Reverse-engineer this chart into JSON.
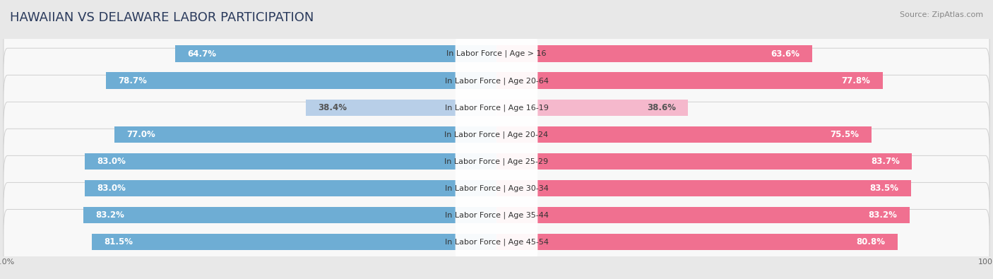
{
  "title": "HAWAIIAN VS DELAWARE LABOR PARTICIPATION",
  "source": "Source: ZipAtlas.com",
  "categories": [
    "In Labor Force | Age > 16",
    "In Labor Force | Age 20-64",
    "In Labor Force | Age 16-19",
    "In Labor Force | Age 20-24",
    "In Labor Force | Age 25-29",
    "In Labor Force | Age 30-34",
    "In Labor Force | Age 35-44",
    "In Labor Force | Age 45-54"
  ],
  "hawaiian": [
    64.7,
    78.7,
    38.4,
    77.0,
    83.0,
    83.0,
    83.2,
    81.5
  ],
  "delaware": [
    63.6,
    77.8,
    38.6,
    75.5,
    83.7,
    83.5,
    83.2,
    80.8
  ],
  "hawaiian_color": "#6eadd4",
  "hawaiian_color_light": "#b8cfe8",
  "delaware_color": "#f07090",
  "delaware_color_light": "#f5b8cc",
  "bg_color": "#e8e8e8",
  "row_bg": "#f8f8f8",
  "max_val": 100.0,
  "title_fontsize": 13,
  "bar_label_fontsize": 8.5,
  "cat_label_fontsize": 8,
  "tick_fontsize": 8,
  "legend_fontsize": 9
}
